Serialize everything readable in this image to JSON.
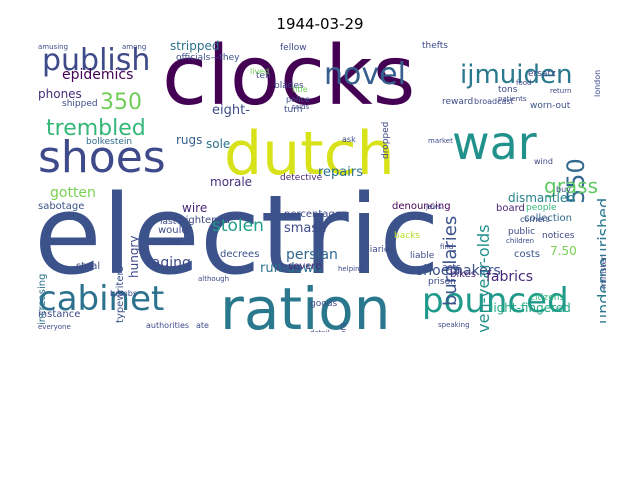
{
  "title": "1944-03-29",
  "words": [
    {
      "t": "electric",
      "c": "#3b528b"
    },
    {
      "t": "clocks",
      "c": "#440154"
    },
    {
      "t": "dutch",
      "c": "#d8e219"
    },
    {
      "t": "ration",
      "c": "#2a788e"
    },
    {
      "t": "shoes",
      "c": "#3e4a89"
    },
    {
      "t": "war",
      "c": "#21918c"
    },
    {
      "t": "cabinet",
      "c": "#2c728e"
    },
    {
      "t": "pounced",
      "c": "#1f9a8a"
    },
    {
      "t": "publish",
      "c": "#3e4a89"
    },
    {
      "t": "novel",
      "c": "#355f8d"
    },
    {
      "t": "ijmuiden",
      "c": "#2a788e"
    },
    {
      "t": "trembled",
      "c": "#35b779"
    },
    {
      "t": "350",
      "c": "#6ece58"
    },
    {
      "t": "550",
      "c": "#31688e"
    },
    {
      "t": "grass",
      "c": "#5ec962"
    },
    {
      "t": "epidemics",
      "c": "#440154"
    },
    {
      "t": "burglaries",
      "c": "#3b528b"
    },
    {
      "t": "eleven-year-olds",
      "c": "#21918c"
    },
    {
      "t": "undernourished",
      "c": "#2a788e"
    },
    {
      "t": "stolen",
      "c": "#1f9e89"
    },
    {
      "t": "gotten",
      "c": "#7ad151"
    },
    {
      "t": "shoemakers",
      "c": "#3b528b"
    },
    {
      "t": "raging",
      "c": "#3e4a89"
    },
    {
      "t": "run-down",
      "c": "#2c728e"
    },
    {
      "t": "persian",
      "c": "#31688e"
    },
    {
      "t": "fabrics",
      "c": "#482878"
    },
    {
      "t": "light-fingered",
      "c": "#22a884"
    },
    {
      "t": "dismantled",
      "c": "#26828e"
    },
    {
      "t": "repairs",
      "c": "#2c728e"
    },
    {
      "t": "smash",
      "c": "#3e4a89"
    },
    {
      "t": "stripped",
      "c": "#2c728e"
    },
    {
      "t": "eight-",
      "c": "#3e4a89"
    },
    {
      "t": "phones",
      "c": "#472d7b"
    },
    {
      "t": "morale",
      "c": "#46327e"
    },
    {
      "t": "rugs",
      "c": "#355f8d"
    },
    {
      "t": "sole",
      "c": "#2c728e"
    },
    {
      "t": "hungry",
      "c": "#3e4a89"
    },
    {
      "t": "wire",
      "c": "#482475"
    },
    {
      "t": "sabotage",
      "c": "#3b528b"
    },
    {
      "t": "frightened",
      "c": "#3e4a89"
    },
    {
      "t": "decrees",
      "c": "#3b528b"
    },
    {
      "t": "severe",
      "c": "#482878"
    },
    {
      "t": "percentage",
      "c": "#3e4a89"
    },
    {
      "t": "denouncing",
      "c": "#440154"
    },
    {
      "t": "collection",
      "c": "#31688e"
    },
    {
      "t": "7.50",
      "c": "#7ad151"
    },
    {
      "t": "costs",
      "c": "#3b528b"
    },
    {
      "t": "bikes",
      "c": "#482878"
    },
    {
      "t": "board",
      "c": "#482878"
    },
    {
      "t": "instance",
      "c": "#3e4a89"
    },
    {
      "t": "steal",
      "c": "#3e4a89"
    },
    {
      "t": "increasing",
      "c": "#2c728e"
    },
    {
      "t": "typewriters",
      "c": "#3b528b"
    },
    {
      "t": "would",
      "c": "#3e4a89"
    },
    {
      "t": "last",
      "c": "#3e4a89"
    },
    {
      "t": "bolkestein",
      "c": "#31688e"
    },
    {
      "t": "shipped",
      "c": "#3e4a89"
    },
    {
      "t": "officials—they",
      "c": "#3b528b"
    },
    {
      "t": "blades",
      "c": "#3e4a89"
    },
    {
      "t": "fellow",
      "c": "#3e4a89"
    },
    {
      "t": "thefts",
      "c": "#3e4a89"
    },
    {
      "t": "ersatz",
      "c": "#3e4a89"
    },
    {
      "t": "reward",
      "c": "#3e4a89"
    },
    {
      "t": "tons",
      "c": "#3e4a89"
    },
    {
      "t": "worn-out",
      "c": "#3b528b"
    },
    {
      "t": "broadcast",
      "c": "#3e4a89"
    },
    {
      "t": "detective",
      "c": "#482878"
    },
    {
      "t": "turn",
      "c": "#3e4a89"
    },
    {
      "t": "dropped",
      "c": "#3e4a89"
    },
    {
      "t": "london",
      "c": "#3e4a89"
    },
    {
      "t": "minister",
      "c": "#3e4a89"
    },
    {
      "t": "prison",
      "c": "#3e4a89"
    },
    {
      "t": "acts",
      "c": "#3e4a89"
    },
    {
      "t": "public",
      "c": "#3e4a89"
    },
    {
      "t": "notices",
      "c": "#3e4a89"
    },
    {
      "t": "people",
      "c": "#35b779"
    },
    {
      "t": "liable",
      "c": "#3e4a89"
    },
    {
      "t": "diaries",
      "c": "#3e4a89"
    },
    {
      "t": "backs",
      "c": "#b5de2b"
    },
    {
      "t": "citizens",
      "c": "#35b779"
    },
    {
      "t": "goods",
      "c": "#3e4a89"
    },
    {
      "t": "doctors",
      "c": "#3e4a89"
    },
    {
      "t": "ten",
      "c": "#3e4a89"
    },
    {
      "t": "lived",
      "c": "#6ece58"
    },
    {
      "t": "police",
      "c": "#3e4a89"
    },
    {
      "t": "corners",
      "c": "#3e4a89"
    },
    {
      "t": "wind",
      "c": "#3e4a89"
    },
    {
      "t": "buy",
      "c": "#3e4a89"
    },
    {
      "t": "ask",
      "c": "#3e4a89"
    },
    {
      "t": "helping",
      "c": "#3e4a89"
    },
    {
      "t": "speaking",
      "c": "#3e4a89"
    },
    {
      "t": "among",
      "c": "#3e4a89"
    },
    {
      "t": "amusing",
      "c": "#3e4a89"
    },
    {
      "t": "authorities",
      "c": "#3e4a89"
    },
    {
      "t": "ate",
      "c": "#3e4a89"
    },
    {
      "t": "bombs",
      "c": "#3e4a89"
    },
    {
      "t": "although",
      "c": "#3e4a89"
    },
    {
      "t": "return",
      "c": "#3e4a89"
    },
    {
      "t": "patients",
      "c": "#3e4a89"
    },
    {
      "t": "food",
      "c": "#3e4a89"
    },
    {
      "t": "find",
      "c": "#3e4a89"
    },
    {
      "t": "children",
      "c": "#3e4a89"
    },
    {
      "t": "title",
      "c": "#6ece58"
    },
    {
      "t": "raids",
      "c": "#3e4a89"
    },
    {
      "t": "visit",
      "c": "#3e4a89"
    },
    {
      "t": "everyone",
      "c": "#3e4a89"
    },
    {
      "t": "detail",
      "c": "#3e4a89"
    },
    {
      "t": "jews",
      "c": "#3e4a89"
    },
    {
      "t": "market",
      "c": "#3e4a89"
    }
  ]
}
